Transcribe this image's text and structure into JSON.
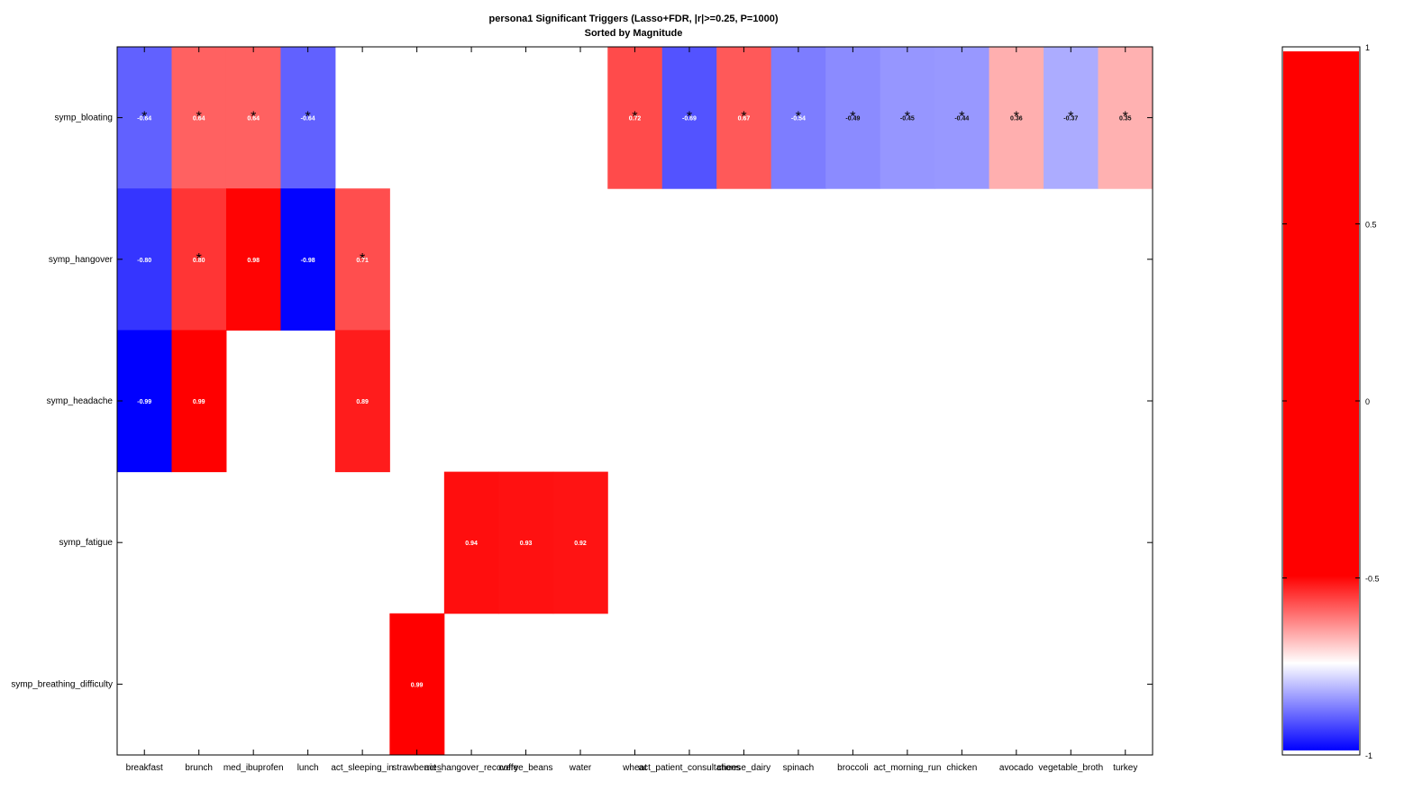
{
  "chart_data": {
    "type": "heatmap",
    "title": "persona1 Significant Triggers (Lasso+FDR, |r|>=0.25, P=1000)",
    "subtitle": "Sorted by Magnitude",
    "columns": [
      "breakfast",
      "brunch",
      "med_ibuprofen",
      "lunch",
      "act_sleeping_in",
      "strawberries",
      "act_hangover_recovery",
      "coffee_beans",
      "water",
      "wheat",
      "act_patient_consultations",
      "cheese_dairy",
      "spinach",
      "broccoli",
      "act_morning_run",
      "chicken",
      "avocado",
      "vegetable_broth",
      "turkey"
    ],
    "rows": [
      "symp_bloating",
      "symp_hangover",
      "symp_headache",
      "symp_fatigue",
      "symp_breathing_difficulty"
    ],
    "values": [
      [
        -0.64,
        0.64,
        0.64,
        -0.64,
        null,
        null,
        null,
        null,
        null,
        0.72,
        -0.69,
        0.67,
        -0.54,
        -0.49,
        -0.45,
        -0.44,
        0.36,
        -0.37,
        0.35
      ],
      [
        -0.8,
        0.8,
        0.98,
        -0.98,
        0.71,
        null,
        null,
        null,
        null,
        null,
        null,
        null,
        null,
        null,
        null,
        null,
        null,
        null,
        null
      ],
      [
        -0.99,
        0.99,
        null,
        null,
        0.89,
        null,
        null,
        null,
        null,
        null,
        null,
        null,
        null,
        null,
        null,
        null,
        null,
        null,
        null
      ],
      [
        null,
        null,
        null,
        null,
        null,
        null,
        0.94,
        0.93,
        0.92,
        null,
        null,
        null,
        null,
        null,
        null,
        null,
        null,
        null,
        null
      ],
      [
        null,
        null,
        null,
        null,
        null,
        0.99,
        null,
        null,
        null,
        null,
        null,
        null,
        null,
        null,
        null,
        null,
        null,
        null,
        null
      ]
    ],
    "labels": [
      [
        "-0.64",
        "0.64",
        "0.64",
        "-0.64",
        null,
        null,
        null,
        null,
        null,
        "0.72",
        "-0.69",
        "0.67",
        "-0.54",
        "-0.49",
        "-0.45",
        "-0.44",
        "0.36",
        "-0.37",
        "0.35"
      ],
      [
        "-0.80",
        "0.80",
        "0.98",
        "-0.98",
        "0.71",
        null,
        null,
        null,
        null,
        null,
        null,
        null,
        null,
        null,
        null,
        null,
        null,
        null,
        null
      ],
      [
        "-0.99",
        "0.99",
        null,
        null,
        "0.89",
        null,
        null,
        null,
        null,
        null,
        null,
        null,
        null,
        null,
        null,
        null,
        null,
        null,
        null
      ],
      [
        null,
        null,
        null,
        null,
        null,
        null,
        "0.94",
        "0.93",
        "0.92",
        null,
        null,
        null,
        null,
        null,
        null,
        null,
        null,
        null,
        null
      ],
      [
        null,
        null,
        null,
        null,
        null,
        "0.99",
        null,
        null,
        null,
        null,
        null,
        null,
        null,
        null,
        null,
        null,
        null,
        null,
        null
      ]
    ],
    "star_markers": [
      [
        true,
        true,
        true,
        true,
        false,
        false,
        false,
        false,
        false,
        true,
        true,
        true,
        true,
        true,
        true,
        true,
        true,
        true,
        true
      ],
      [
        false,
        true,
        false,
        false,
        true,
        false,
        false,
        false,
        false,
        false,
        false,
        false,
        false,
        false,
        false,
        false,
        false,
        false,
        false
      ],
      [
        false,
        false,
        false,
        false,
        false,
        false,
        false,
        false,
        false,
        false,
        false,
        false,
        false,
        false,
        false,
        false,
        false,
        false,
        false
      ],
      [
        false,
        false,
        false,
        false,
        false,
        false,
        false,
        false,
        false,
        false,
        false,
        false,
        false,
        false,
        false,
        false,
        false,
        false,
        false
      ],
      [
        false,
        false,
        false,
        false,
        false,
        false,
        false,
        false,
        false,
        false,
        false,
        false,
        false,
        false,
        false,
        false,
        false,
        false,
        false
      ]
    ],
    "colorbar": {
      "range": [
        -1,
        1
      ],
      "ticks": [
        "1",
        "0.5",
        "0",
        "-0.5",
        "-1"
      ],
      "tick_values": [
        1,
        0.5,
        0,
        -0.5,
        -1
      ]
    },
    "colors": {
      "positive": "#ff0000",
      "negative": "#0000ff",
      "neutral": "#ffffff"
    },
    "grid": false
  }
}
